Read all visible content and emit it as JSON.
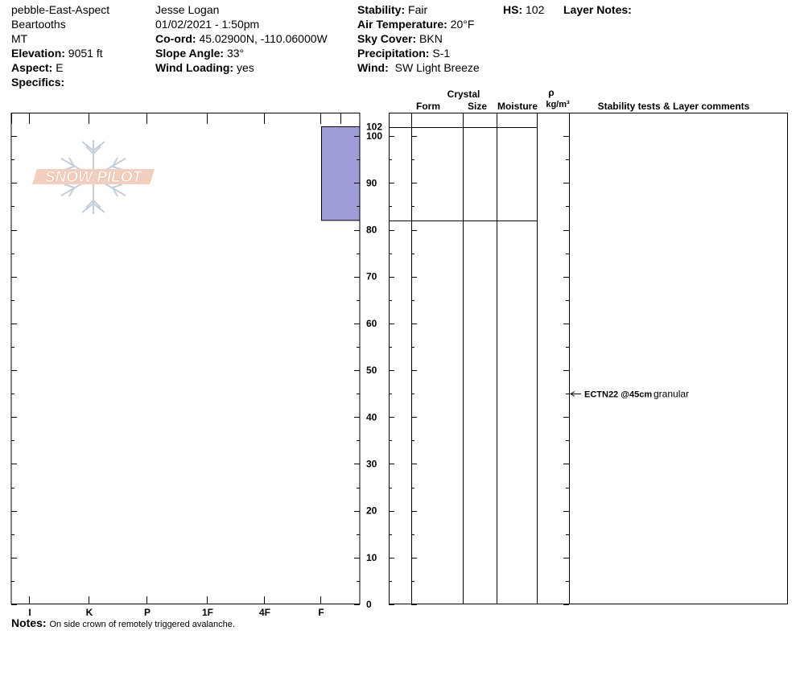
{
  "header": {
    "site_name": "pebble-East-Aspect",
    "range": "Beartooths",
    "state": "MT",
    "elevation_label": "Elevation:",
    "elevation_value": "9051 ft",
    "aspect_label": "Aspect:",
    "aspect_value": "E",
    "specifics_label": "Specifics:",
    "observer": "Jesse Logan",
    "datetime": "01/02/2021 - 1:50pm",
    "coord_label": "Co-ord:",
    "coord_value": "45.02900N, -110.06000W",
    "slope_label": "Slope Angle:",
    "slope_value": "33°",
    "wind_loading_label": "Wind Loading:",
    "wind_loading_value": "yes",
    "stability_label": "Stability:",
    "stability_value": "Fair",
    "air_temp_label": "Air Temperature:",
    "air_temp_value": "20°F",
    "sky_label": "Sky Cover:",
    "sky_value": "BKN",
    "precip_label": "Precipitation:",
    "precip_value": "S-1",
    "wind_label": "Wind:",
    "wind_value": "SW Light Breeze",
    "hs_label": "HS:",
    "hs_value": "102",
    "layer_notes_label": "Layer Notes:"
  },
  "columns": {
    "crystal": "Crystal",
    "form": "Form",
    "size": "Size",
    "moisture": "Moisture",
    "rho": "ρ",
    "density_unit": "kg/m³",
    "stability_comments": "Stability tests & Layer comments"
  },
  "logo_text": "SNOW PILOT",
  "notes": {
    "label": "Notes:",
    "text": "On side crown of remotely triggered avalanche."
  },
  "colors": {
    "layer_fill": "#9f9dd8",
    "outline": "#000000",
    "logo": "#f2c7b4"
  },
  "chart_data": {
    "type": "bar",
    "title": "",
    "ylabel": "",
    "xlabel": "",
    "hardness_scale": [
      "I",
      "K",
      "P",
      "1F",
      "4F",
      "F"
    ],
    "height_ticks": [
      0,
      10,
      20,
      30,
      40,
      50,
      60,
      70,
      80,
      90,
      100
    ],
    "snow_height": 102,
    "ylim": [
      0,
      102
    ],
    "layers": [
      {
        "top": 102,
        "bottom": 82,
        "hardness": "F"
      },
      {
        "top": 82,
        "bottom": 0,
        "hardness": ""
      }
    ],
    "stability_tests": [
      {
        "height": 45,
        "test": "ECTN22 @45cm",
        "comment": "granular"
      }
    ]
  }
}
